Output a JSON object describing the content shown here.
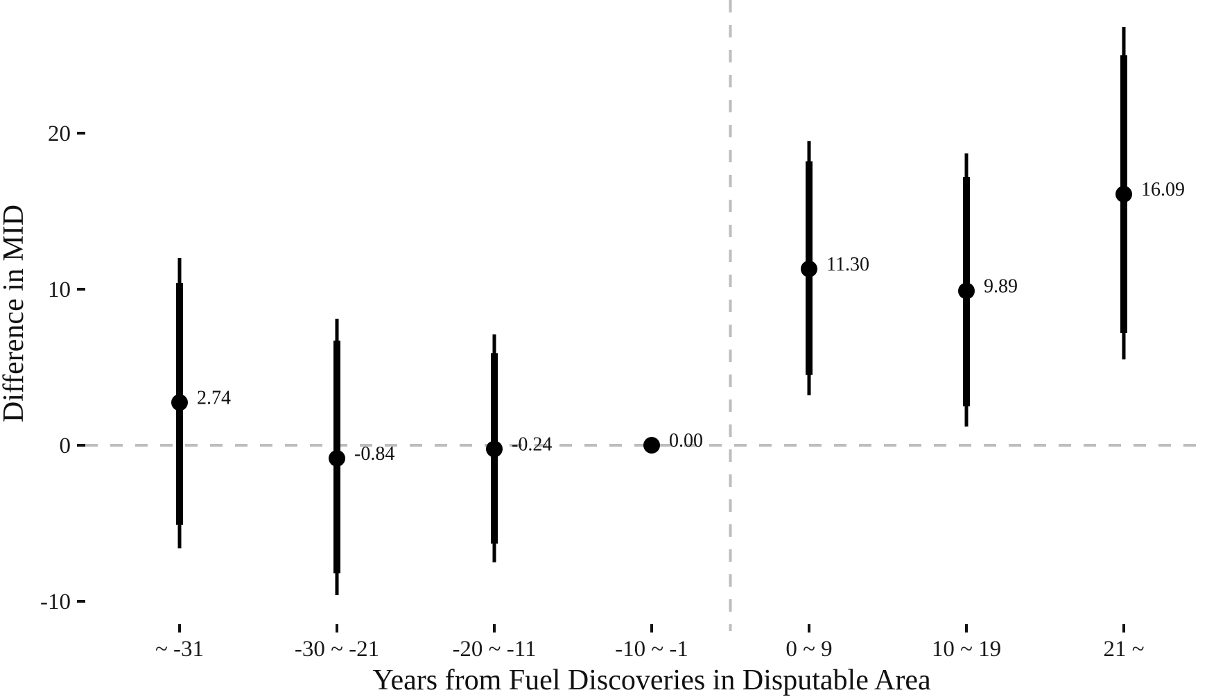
{
  "chart_data": {
    "type": "scatter",
    "subtype": "coefficient-plot-with-confidence-intervals",
    "title": "",
    "xlabel": "Years from Fuel Discoveries in Disputable Area",
    "ylabel": "Difference in MID",
    "categories": [
      "~ -31",
      "-30 ~ -21",
      "-20 ~ -11",
      "-10 ~ -1",
      "0 ~ 9",
      "10 ~ 19",
      "21 ~"
    ],
    "series": [
      {
        "name": "estimate",
        "values": [
          2.74,
          -0.84,
          -0.24,
          0.0,
          11.3,
          9.89,
          16.09
        ],
        "labels": [
          "2.74",
          "-0.84",
          "-0.24",
          "0.00",
          "11.30",
          "9.89",
          "16.09"
        ],
        "ci_inner_low": [
          -5.1,
          -8.2,
          -6.3,
          0.0,
          4.5,
          2.5,
          7.2
        ],
        "ci_inner_high": [
          10.4,
          6.7,
          5.9,
          0.0,
          18.2,
          17.2,
          25.0
        ],
        "ci_outer_low": [
          -6.6,
          -9.6,
          -7.5,
          0.0,
          3.2,
          1.2,
          5.5
        ],
        "ci_outer_high": [
          12.0,
          8.1,
          7.1,
          0.0,
          19.5,
          18.7,
          26.8
        ]
      }
    ],
    "y_ticks": [
      -10,
      0,
      10,
      20
    ],
    "y_tick_labels": [
      "-10",
      "0",
      "10",
      "20"
    ],
    "ylim": [
      -12.5,
      28.5
    ],
    "grid": false,
    "legend": "none",
    "reference_lines": {
      "horizontal_y": 0,
      "vertical_between": [
        "-10 ~ -1",
        "0 ~ 9"
      ],
      "style": "dashed",
      "color": "#bdbdbd"
    },
    "colors": {
      "points": "#000000",
      "intervals": "#000000",
      "reference": "#bdbdbd"
    }
  }
}
